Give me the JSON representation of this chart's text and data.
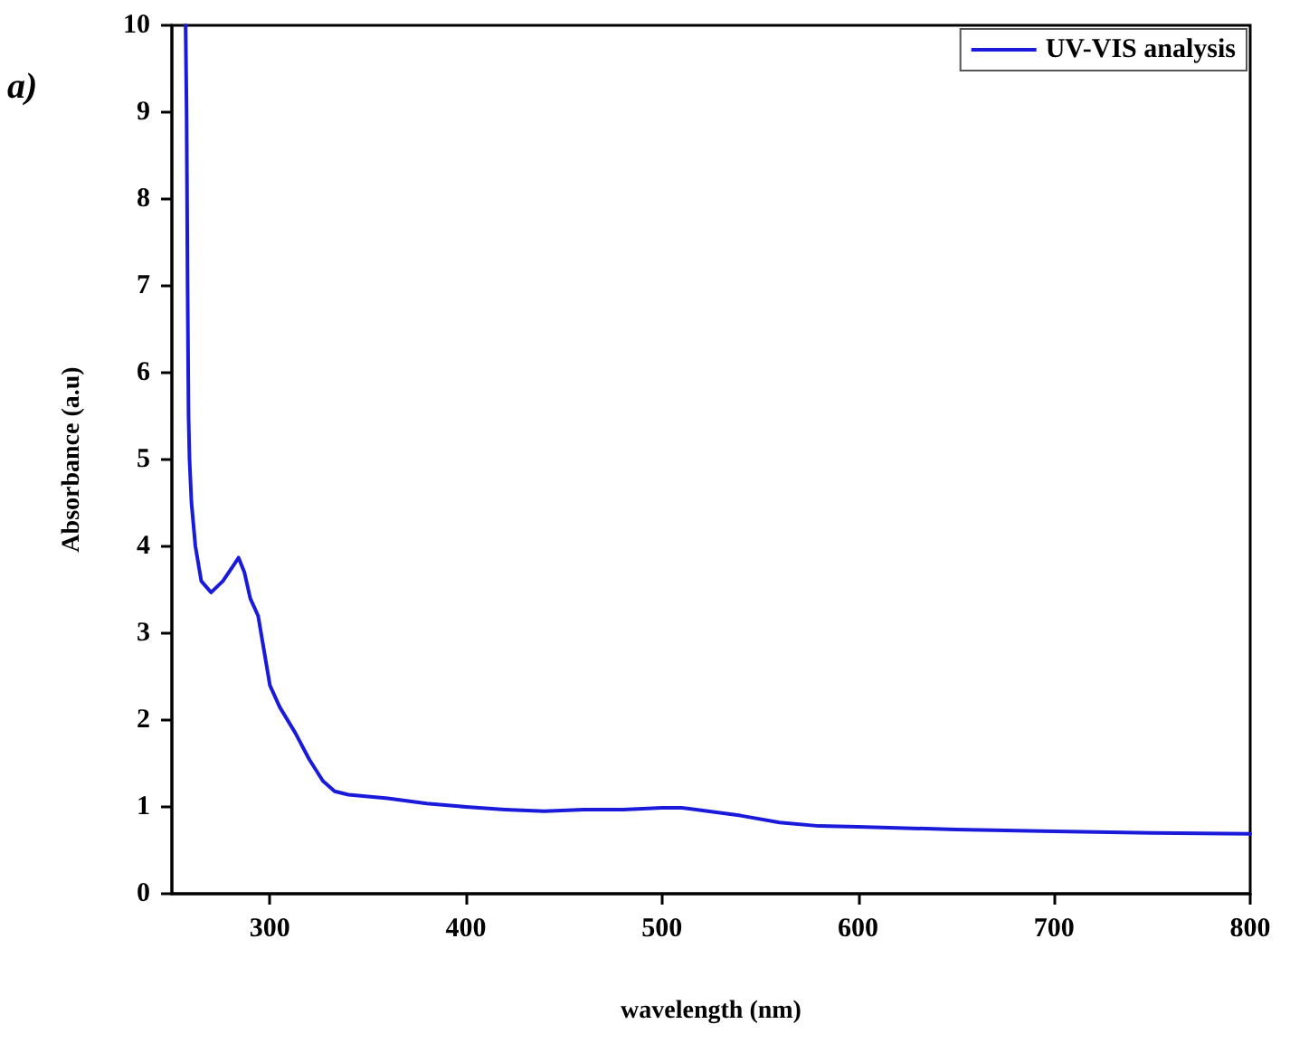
{
  "chart_data": {
    "type": "line",
    "xlabel": "wavelength (nm)",
    "ylabel": "Absorbance (a.u)",
    "annotations": [
      "a)"
    ],
    "xlim": [
      250,
      800
    ],
    "xticks": [
      300,
      400,
      500,
      600,
      700,
      800
    ],
    "ylim": [
      0,
      10
    ],
    "yticks": [
      0,
      1,
      2,
      3,
      4,
      5,
      6,
      7,
      8,
      9,
      10
    ],
    "grid": false,
    "legend": "top right",
    "marker": "none",
    "line_style": "solid",
    "series": [
      {
        "name": "UV-VIS analysis",
        "color": "#1a1adb",
        "x": [
          257,
          257.5,
          258,
          258.5,
          259,
          260,
          262,
          265,
          270,
          276,
          282,
          284,
          287,
          290,
          294,
          297,
          300,
          305,
          313,
          320,
          327,
          333,
          340,
          360,
          380,
          400,
          420,
          440,
          460,
          480,
          500,
          510,
          520,
          540,
          560,
          580,
          600,
          650,
          700,
          750,
          800
        ],
        "values": [
          10,
          9,
          7,
          5.5,
          5.0,
          4.5,
          4.0,
          3.6,
          3.47,
          3.6,
          3.8,
          3.87,
          3.7,
          3.4,
          3.2,
          2.8,
          2.4,
          2.15,
          1.85,
          1.55,
          1.3,
          1.18,
          1.14,
          1.1,
          1.04,
          1.0,
          0.97,
          0.95,
          0.97,
          0.97,
          0.99,
          0.99,
          0.96,
          0.9,
          0.82,
          0.78,
          0.77,
          0.74,
          0.72,
          0.7,
          0.69
        ]
      }
    ]
  }
}
